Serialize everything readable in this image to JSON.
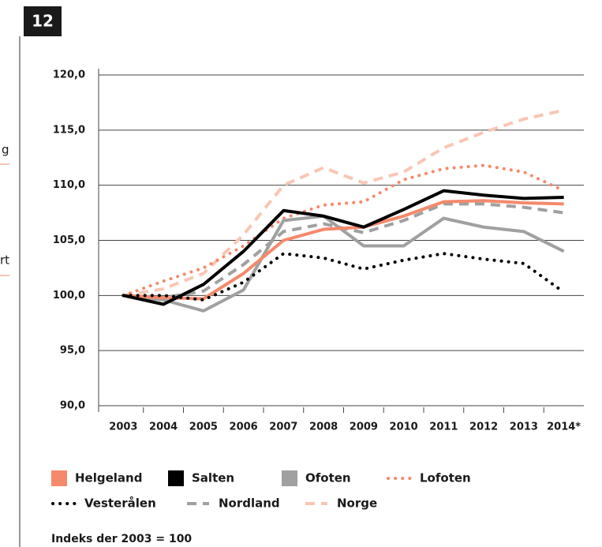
{
  "page_number": "12",
  "side_fragments": [
    "g",
    "rt"
  ],
  "chart_data": {
    "type": "line",
    "categories": [
      "2003",
      "2004",
      "2005",
      "2006",
      "2007",
      "2008",
      "2009",
      "2010",
      "2011",
      "2012",
      "2013",
      "2014*"
    ],
    "ylim": [
      90,
      120
    ],
    "yticks": [
      {
        "value": 90,
        "label": "90,0"
      },
      {
        "value": 95,
        "label": "95,0"
      },
      {
        "value": 100,
        "label": "100,0"
      },
      {
        "value": 105,
        "label": "105,0"
      },
      {
        "value": 110,
        "label": "110,0"
      },
      {
        "value": 115,
        "label": "115,0"
      },
      {
        "value": 120,
        "label": "120,0"
      }
    ],
    "grid": true,
    "series": [
      {
        "name": "Helgeland",
        "color": "#f4896b",
        "style": "solid",
        "values": [
          100,
          99.8,
          99.7,
          102,
          105,
          106,
          106.2,
          107.2,
          108.5,
          108.6,
          108.4,
          108.3
        ]
      },
      {
        "name": "Salten",
        "color": "#000000",
        "style": "solid",
        "values": [
          100,
          99.2,
          101,
          104,
          107.7,
          107.2,
          106.2,
          107.8,
          109.5,
          109.1,
          108.8,
          108.9
        ]
      },
      {
        "name": "Ofoten",
        "color": "#a0a0a0",
        "style": "solid",
        "values": [
          100,
          99.6,
          98.6,
          100.5,
          106.8,
          107.2,
          104.5,
          104.5,
          107,
          106.2,
          105.8,
          104
        ]
      },
      {
        "name": "Lofoten",
        "color": "#f4896b",
        "style": "dotted",
        "values": [
          100,
          101.3,
          102.5,
          104.5,
          107,
          108.2,
          108.5,
          110.5,
          111.5,
          111.8,
          111.2,
          109.5
        ]
      },
      {
        "name": "Vesterålen",
        "color": "#000000",
        "style": "dotted",
        "values": [
          100,
          100,
          99.6,
          101.2,
          103.8,
          103.4,
          102.4,
          103.2,
          103.8,
          103.3,
          102.9,
          100.3
        ]
      },
      {
        "name": "Nordland",
        "color": "#a0a0a0",
        "style": "dashed",
        "values": [
          100,
          99.8,
          100.4,
          102.8,
          105.8,
          106.5,
          105.7,
          106.8,
          108.3,
          108.3,
          108,
          107.5
        ]
      },
      {
        "name": "Norge",
        "color": "#f9c6b4",
        "style": "dashed",
        "values": [
          100,
          100.6,
          102,
          105.5,
          110,
          111.6,
          110.2,
          111.2,
          113.4,
          114.8,
          116,
          116.8
        ]
      }
    ],
    "note": "Indeks der 2003 = 100"
  }
}
